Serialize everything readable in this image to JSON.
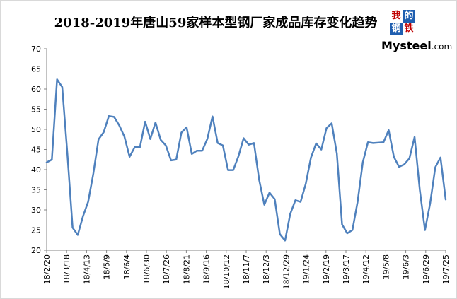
{
  "header": {
    "title": "2018-2019年唐山59家样本型钢厂家成品库存变化趋势"
  },
  "logo": {
    "chars": [
      "我",
      "的",
      "钢",
      "铁"
    ],
    "text_main": "Mysteel",
    "text_suffix": ".com"
  },
  "colors": {
    "line": "#4f81bd",
    "logo_red": "#c00000",
    "logo_blue": "#1f5fb0"
  },
  "chart_data": {
    "type": "line",
    "title": "2018-2019年唐山59家样本型钢厂家成品库存变化趋势",
    "xlabel": "",
    "ylabel": "",
    "ylim": [
      20,
      70
    ],
    "yticks": [
      20,
      25,
      30,
      35,
      40,
      45,
      50,
      55,
      60,
      65,
      70
    ],
    "x_tick_labels": [
      "18/2/20",
      "18/3/18",
      "18/4/13",
      "18/5/9",
      "18/6/4",
      "18/6/30",
      "18/7/26",
      "18/8/21",
      "18/9/16",
      "18/10/12",
      "18/11/7",
      "18/12/3",
      "18/12/29",
      "19/1/24",
      "19/2/19",
      "19/3/17",
      "19/4/12",
      "19/5/8",
      "19/6/3",
      "19/6/29",
      "19/7/25"
    ],
    "grid": false,
    "legend": "none",
    "series": [
      {
        "values": [
          41.8,
          42.5,
          62.4,
          60.5,
          43.8,
          25.6,
          23.8,
          28.4,
          32.0,
          39.0,
          47.5,
          49.3,
          53.3,
          53.1,
          51.0,
          48.2,
          43.2,
          45.6,
          45.6,
          51.9,
          47.6,
          51.7,
          47.4,
          46.0,
          42.3,
          42.5,
          49.2,
          50.5,
          43.9,
          44.7,
          44.7,
          47.6,
          53.2,
          46.6,
          46.0,
          39.9,
          39.9,
          43.3,
          47.8,
          46.2,
          46.6,
          37.5,
          31.3,
          34.3,
          32.7,
          24.0,
          22.4,
          29.0,
          32.4,
          32.0,
          36.5,
          43.0,
          46.5,
          45.0,
          50.3,
          51.5,
          44.0,
          26.4,
          24.2,
          25.0,
          32.0,
          41.8,
          46.8,
          46.6,
          46.7,
          46.8,
          49.8,
          43.2,
          40.7,
          41.3,
          42.8,
          48.1,
          35.0,
          25.0,
          31.6,
          40.6,
          43.0,
          32.6
        ]
      }
    ]
  }
}
